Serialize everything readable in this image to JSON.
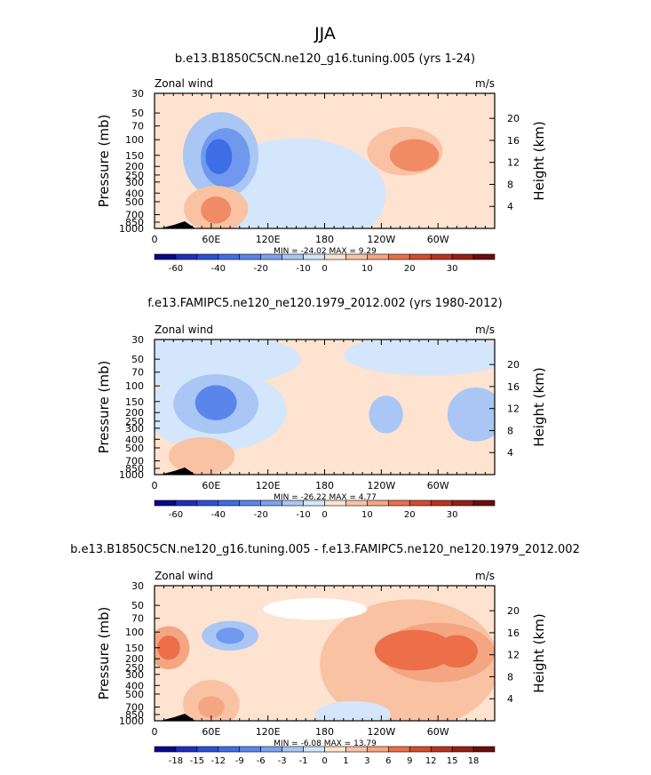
{
  "page_title": "JJA",
  "chart_data": [
    {
      "type": "heatmap",
      "title": "b.e13.B1850C5CN.ne120_g16.tuning.005 (yrs 1-24)",
      "variable_label": "Zonal wind",
      "units": "m/s",
      "ylabel": "Pressure (mb)",
      "ylabel_right": "Height (km)",
      "x_ticks": [
        "0",
        "60E",
        "120E",
        "180",
        "120W",
        "60W"
      ],
      "y_ticks": [
        "30",
        "50",
        "70",
        "100",
        "150",
        "200",
        "250",
        "300",
        "400",
        "500",
        "700",
        "850",
        "1000"
      ],
      "height_ticks": [
        "20",
        "16",
        "12",
        "8",
        "4"
      ],
      "stats_text": "MIN = -24.02   MAX =   9.29",
      "min": -24.02,
      "max": 9.29,
      "colorbar_labels": [
        "-60",
        "-40",
        "-20",
        "-10",
        "0",
        "10",
        "20",
        "30"
      ],
      "background": "#fde3d0",
      "regions": [
        {
          "lon": 150,
          "p": 420,
          "rx": 95,
          "ry": 0.42,
          "color": "#d4e6fb"
        },
        {
          "lon": 70,
          "p": 150,
          "rx": 40,
          "ry": 0.32,
          "color": "#a9c6f5"
        },
        {
          "lon": 75,
          "p": 160,
          "rx": 26,
          "ry": 0.22,
          "color": "#6f98ee"
        },
        {
          "lon": 68,
          "p": 155,
          "rx": 14,
          "ry": 0.13,
          "color": "#3d6ee6"
        },
        {
          "lon": 265,
          "p": 135,
          "rx": 40,
          "ry": 0.18,
          "color": "#f9c2a3"
        },
        {
          "lon": 275,
          "p": 150,
          "rx": 26,
          "ry": 0.12,
          "color": "#f18b66"
        },
        {
          "lon": 65,
          "p": 600,
          "rx": 34,
          "ry": 0.17,
          "color": "#f9c2a3"
        },
        {
          "lon": 65,
          "p": 620,
          "rx": 16,
          "ry": 0.1,
          "color": "#f18b66"
        }
      ]
    },
    {
      "type": "heatmap",
      "title": "f.e13.FAMIPC5.ne120_ne120.1979_2012.002 (yrs 1980-2012)",
      "variable_label": "Zonal wind",
      "units": "m/s",
      "ylabel": "Pressure (mb)",
      "ylabel_right": "Height (km)",
      "x_ticks": [
        "0",
        "60E",
        "120E",
        "180",
        "120W",
        "60W"
      ],
      "y_ticks": [
        "30",
        "50",
        "70",
        "100",
        "150",
        "200",
        "250",
        "300",
        "400",
        "500",
        "700",
        "850",
        "1000"
      ],
      "height_ticks": [
        "20",
        "16",
        "12",
        "8",
        "4"
      ],
      "stats_text": "MIN = -26.22   MAX =   4.77",
      "min": -26.22,
      "max": 4.77,
      "colorbar_labels": [
        "-60",
        "-40",
        "-20",
        "-10",
        "0",
        "10",
        "20",
        "30"
      ],
      "background": "#fde3d0",
      "regions": [
        {
          "lon": 45,
          "p": 50,
          "rx": 110,
          "ry": 0.2,
          "color": "#d4e6fb"
        },
        {
          "lon": 290,
          "p": 45,
          "rx": 90,
          "ry": 0.15,
          "color": "#d4e6fb"
        },
        {
          "lon": 65,
          "p": 190,
          "rx": 75,
          "ry": 0.3,
          "color": "#d4e6fb"
        },
        {
          "lon": 65,
          "p": 160,
          "rx": 45,
          "ry": 0.22,
          "color": "#a9c6f5"
        },
        {
          "lon": 65,
          "p": 155,
          "rx": 22,
          "ry": 0.13,
          "color": "#5a86ea"
        },
        {
          "lon": 245,
          "p": 210,
          "rx": 18,
          "ry": 0.14,
          "color": "#a9c6f5"
        },
        {
          "lon": 340,
          "p": 210,
          "rx": 30,
          "ry": 0.2,
          "color": "#a9c6f5"
        },
        {
          "lon": 50,
          "p": 620,
          "rx": 35,
          "ry": 0.14,
          "color": "#f9c2a3"
        }
      ]
    },
    {
      "type": "heatmap",
      "title": "b.e13.B1850C5CN.ne120_g16.tuning.005 - f.e13.FAMIPC5.ne120_ne120.1979_2012.002",
      "variable_label": "Zonal wind",
      "units": "m/s",
      "ylabel": "Pressure (mb)",
      "ylabel_right": "Height (km)",
      "x_ticks": [
        "0",
        "60E",
        "120E",
        "180",
        "120W",
        "60W"
      ],
      "y_ticks": [
        "30",
        "50",
        "70",
        "100",
        "150",
        "200",
        "250",
        "300",
        "400",
        "500",
        "700",
        "850",
        "1000"
      ],
      "height_ticks": [
        "20",
        "16",
        "12",
        "8",
        "4"
      ],
      "stats_text": "MIN =   -6.08   MAX =  13.79",
      "min": -6.08,
      "max": 13.79,
      "colorbar_labels": [
        "-18",
        "-15",
        "-12",
        "-9",
        "-6",
        "-3",
        "-1",
        "0",
        "1",
        "3",
        "6",
        "9",
        "12",
        "15",
        "18"
      ],
      "background": "#fde3d0",
      "regions": [
        {
          "lon": 270,
          "p": 230,
          "rx": 95,
          "ry": 0.48,
          "color": "#f9c2a3"
        },
        {
          "lon": 300,
          "p": 170,
          "rx": 60,
          "ry": 0.22,
          "color": "#f4a582"
        },
        {
          "lon": 275,
          "p": 160,
          "rx": 42,
          "ry": 0.15,
          "color": "#ec6f4a"
        },
        {
          "lon": 320,
          "p": 165,
          "rx": 22,
          "ry": 0.12,
          "color": "#ec6f4a"
        },
        {
          "lon": 15,
          "p": 150,
          "rx": 22,
          "ry": 0.16,
          "color": "#f4a582"
        },
        {
          "lon": 15,
          "p": 150,
          "rx": 12,
          "ry": 0.09,
          "color": "#ec6f4a"
        },
        {
          "lon": 80,
          "p": 110,
          "rx": 30,
          "ry": 0.11,
          "color": "#a9c6f5"
        },
        {
          "lon": 80,
          "p": 110,
          "rx": 15,
          "ry": 0.06,
          "color": "#6f98ee"
        },
        {
          "lon": 60,
          "p": 650,
          "rx": 30,
          "ry": 0.18,
          "color": "#f9c2a3"
        },
        {
          "lon": 60,
          "p": 700,
          "rx": 14,
          "ry": 0.08,
          "color": "#f4a582"
        },
        {
          "lon": 210,
          "p": 850,
          "rx": 40,
          "ry": 0.1,
          "color": "#d4e6fb"
        },
        {
          "lon": 170,
          "p": 55,
          "rx": 55,
          "ry": 0.08,
          "color": "#ffffff"
        }
      ]
    }
  ],
  "colorbar_colors_1": [
    "#08088f",
    "#1d2fc0",
    "#2b4fd8",
    "#3d6ee6",
    "#5a86ea",
    "#7ea2ef",
    "#a9c6f5",
    "#d4e6fb",
    "#fde3d0",
    "#f9c2a3",
    "#f4a582",
    "#ec6f4a",
    "#d64a2e",
    "#b8331f",
    "#962013",
    "#6b0d0b"
  ],
  "colorbar_colors_3": [
    "#08088f",
    "#1d2fc0",
    "#2b4fd8",
    "#3d6ee6",
    "#5a86ea",
    "#7ea2ef",
    "#a9c6f5",
    "#d4e6fb",
    "#fde3d0",
    "#f9c2a3",
    "#f4a582",
    "#ec6f4a",
    "#d64a2e",
    "#b8331f",
    "#962013",
    "#6b0d0b"
  ]
}
